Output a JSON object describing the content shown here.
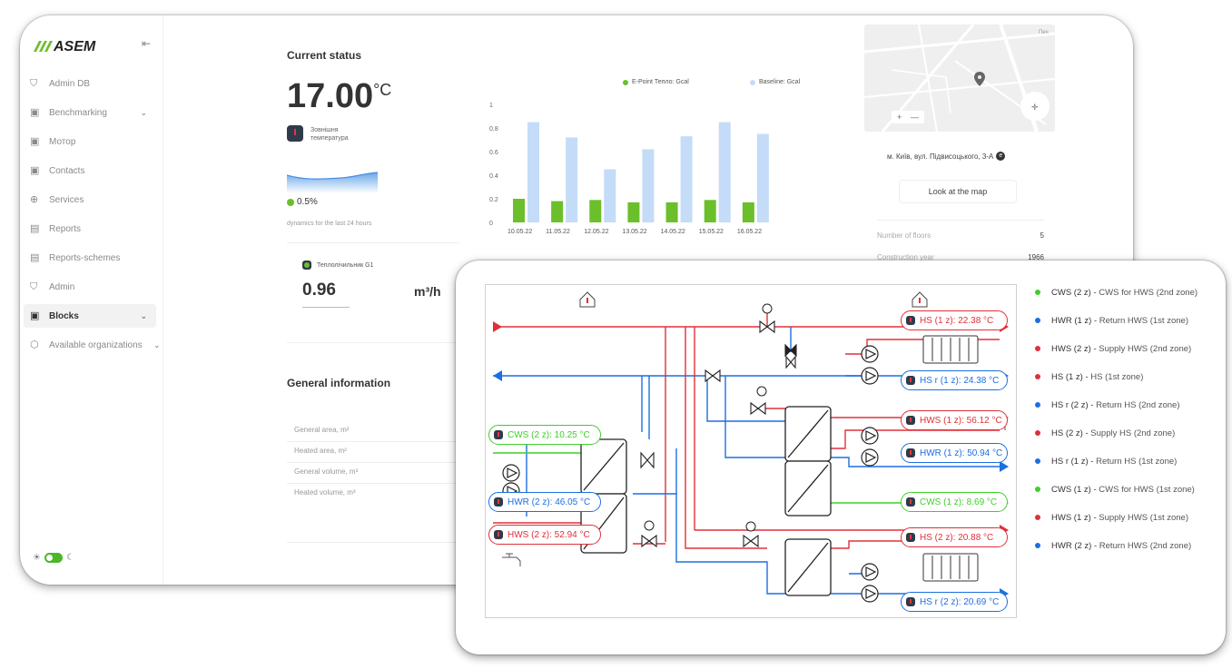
{
  "app": {
    "logo_text": "ASEM"
  },
  "sidebar": {
    "items": [
      {
        "label": "Admin DB",
        "icon": "shield-icon",
        "has_chevron": false
      },
      {
        "label": "Benchmarking",
        "icon": "layout-icon",
        "has_chevron": true
      },
      {
        "label": "Мотор",
        "icon": "layout-icon",
        "has_chevron": false
      },
      {
        "label": "Contacts",
        "icon": "layout-icon",
        "has_chevron": false
      },
      {
        "label": "Services",
        "icon": "globe-icon",
        "has_chevron": false
      },
      {
        "label": "Reports",
        "icon": "report-icon",
        "has_chevron": false
      },
      {
        "label": "Reports-schemes",
        "icon": "report-icon",
        "has_chevron": false
      },
      {
        "label": "Admin",
        "icon": "shield-icon",
        "has_chevron": false
      },
      {
        "label": "Blocks",
        "icon": "layout-icon",
        "has_chevron": true,
        "active": true
      },
      {
        "label": "Available organizations",
        "icon": "box-icon",
        "has_chevron": true
      }
    ],
    "chevron": "⌄"
  },
  "status": {
    "title": "Current status",
    "temperature": "17.00",
    "temperature_unit": "°C",
    "temp_label_line1": "Зовнішня",
    "temp_label_line2": "температура",
    "change_pct": "0.5%",
    "dynamics_label": "dynamics for the last 24 hours",
    "meter_name": "Теплолічильник G1",
    "meter_value": "0.96",
    "meter_unit": "m³/h"
  },
  "general_info": {
    "title": "General information",
    "rows": [
      "General area, m²",
      "Heated area, m²",
      "General volume, m³",
      "Heated volume, m³"
    ]
  },
  "chart_data": {
    "type": "bar",
    "categories": [
      "10.05.22",
      "11.05.22",
      "12.05.22",
      "13.05.22",
      "14.05.22",
      "15.05.22",
      "16.05.22"
    ],
    "series": [
      {
        "name": "E-Point Тепло: Gcal",
        "color": "#6bbf2a",
        "values": [
          0.2,
          0.18,
          0.19,
          0.17,
          0.17,
          0.19,
          0.17
        ]
      },
      {
        "name": "Baseline: Gcal",
        "color": "#c4dcf7",
        "values": [
          0.85,
          0.72,
          0.45,
          0.62,
          0.73,
          0.85,
          0.75
        ]
      }
    ],
    "ylim": [
      0,
      1
    ],
    "yticks": [
      "0",
      "0.2",
      "0.4",
      "0.6",
      "0.8",
      "1"
    ],
    "legend_position": "top-right",
    "grid": false
  },
  "building": {
    "address": "м. Київ, вул. Підвисоцького, 3-А",
    "address_badge": "e",
    "map_button": "Look at the map",
    "map_zoom_in": "+",
    "map_zoom_out": "—",
    "map_corner_text": "Печ",
    "info": [
      {
        "label": "Number of floors",
        "value": "5"
      },
      {
        "label": "Construction year",
        "value": "1966"
      }
    ]
  },
  "scheme": {
    "sensors": {
      "hs1": "HS (1 z): 22.38 °C",
      "hsr1": "HS r (1 z): 24.38 °C",
      "hws1": "HWS (1 z): 56.12 °C",
      "hwr1": "HWR (1 z): 50.94 °C",
      "cws1": "CWS (1 z): 8.69 °C",
      "hs2": "HS (2 z): 20.88 °C",
      "hsr2": "HS r (2 z): 20.69 °C",
      "cws2": "CWS (2 z): 10.25 °C",
      "hwr2": "HWR (2 z): 46.05 °C",
      "hws2": "HWS (2 z): 52.94 °C"
    },
    "legend": [
      {
        "code": "CWS (2 z)",
        "desc": "CWS for HWS (2nd zone)",
        "color": "#3fcf2a"
      },
      {
        "code": "HWR (1 z)",
        "desc": "Return HWS (1st zone)",
        "color": "#1d6fe0"
      },
      {
        "code": "HWS (2 z)",
        "desc": "Supply HWS (2nd zone)",
        "color": "#e0303a"
      },
      {
        "code": "HS (1 z)",
        "desc": "HS (1st zone)",
        "color": "#e0303a"
      },
      {
        "code": "HS r (2 z)",
        "desc": "Return HS (2nd zone)",
        "color": "#1d6fe0"
      },
      {
        "code": "HS (2 z)",
        "desc": "Supply HS (2nd zone)",
        "color": "#e0303a"
      },
      {
        "code": "HS r (1 z)",
        "desc": "Return HS (1st zone)",
        "color": "#1d6fe0"
      },
      {
        "code": "CWS (1 z)",
        "desc": "CWS for HWS (1st zone)",
        "color": "#3fcf2a"
      },
      {
        "code": "HWS (1 z)",
        "desc": "Supply HWS (1st zone)",
        "color": "#e0303a"
      },
      {
        "code": "HWR (2 z)",
        "desc": "Return HWS (2nd zone)",
        "color": "#1d6fe0"
      }
    ],
    "legend_separator": " - "
  }
}
